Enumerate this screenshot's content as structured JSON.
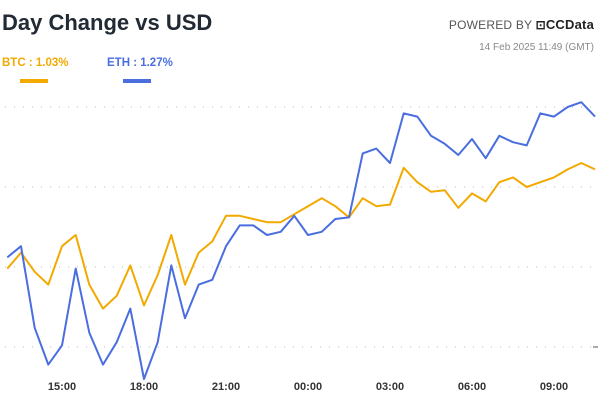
{
  "header": {
    "title": "Day Change vs USD",
    "powered_by": "POWERED BY",
    "brand": "CCData",
    "timestamp": "14 Feb 2025 11:49 (GMT)"
  },
  "legend": [
    {
      "label": "BTC : 1.03%",
      "color": "#f2a900"
    },
    {
      "label": "ETH : 1.27%",
      "color": "#4a6ee0"
    }
  ],
  "chart_data": {
    "type": "line",
    "title": "Day Change vs USD",
    "x_tick_labels": [
      "15:00",
      "18:00",
      "21:00",
      "00:00",
      "03:00",
      "06:00",
      "09:00"
    ],
    "x": [
      "13:00",
      "13:30",
      "14:00",
      "14:30",
      "15:00",
      "15:30",
      "16:00",
      "16:30",
      "17:00",
      "17:30",
      "18:00",
      "18:30",
      "19:00",
      "19:30",
      "20:00",
      "20:30",
      "21:00",
      "21:30",
      "22:00",
      "22:30",
      "23:00",
      "23:30",
      "00:00",
      "00:30",
      "01:00",
      "01:30",
      "02:00",
      "02:30",
      "03:00",
      "03:30",
      "04:00",
      "04:30",
      "05:00",
      "05:30",
      "06:00",
      "06:30",
      "07:00",
      "07:30",
      "08:00",
      "08:30",
      "09:00",
      "09:30",
      "10:00",
      "10:30"
    ],
    "series": [
      {
        "name": "BTC",
        "color": "#f2a900",
        "values": [
          0.49,
          0.59,
          0.47,
          0.39,
          0.63,
          0.7,
          0.39,
          0.24,
          0.32,
          0.51,
          0.26,
          0.45,
          0.7,
          0.39,
          0.59,
          0.66,
          0.82,
          0.82,
          0.8,
          0.78,
          0.78,
          0.83,
          0.88,
          0.93,
          0.88,
          0.81,
          0.93,
          0.88,
          0.89,
          1.12,
          1.03,
          0.97,
          0.98,
          0.87,
          0.96,
          0.91,
          1.03,
          1.06,
          1.0,
          1.03,
          1.06,
          1.11,
          1.15,
          1.11
        ]
      },
      {
        "name": "ETH",
        "color": "#4a6ee0",
        "values": [
          0.56,
          0.63,
          0.12,
          -0.11,
          0.01,
          0.49,
          0.09,
          -0.11,
          0.03,
          0.24,
          -0.2,
          0.03,
          0.51,
          0.18,
          0.39,
          0.42,
          0.63,
          0.76,
          0.76,
          0.7,
          0.72,
          0.82,
          0.7,
          0.72,
          0.8,
          0.81,
          1.21,
          1.24,
          1.15,
          1.46,
          1.44,
          1.32,
          1.27,
          1.2,
          1.3,
          1.18,
          1.32,
          1.28,
          1.26,
          1.46,
          1.44,
          1.5,
          1.53,
          1.44
        ]
      }
    ],
    "y_gridlines": [
      0,
      0.5,
      1.0,
      1.5
    ],
    "grid": true,
    "legend_position": "top-left"
  }
}
